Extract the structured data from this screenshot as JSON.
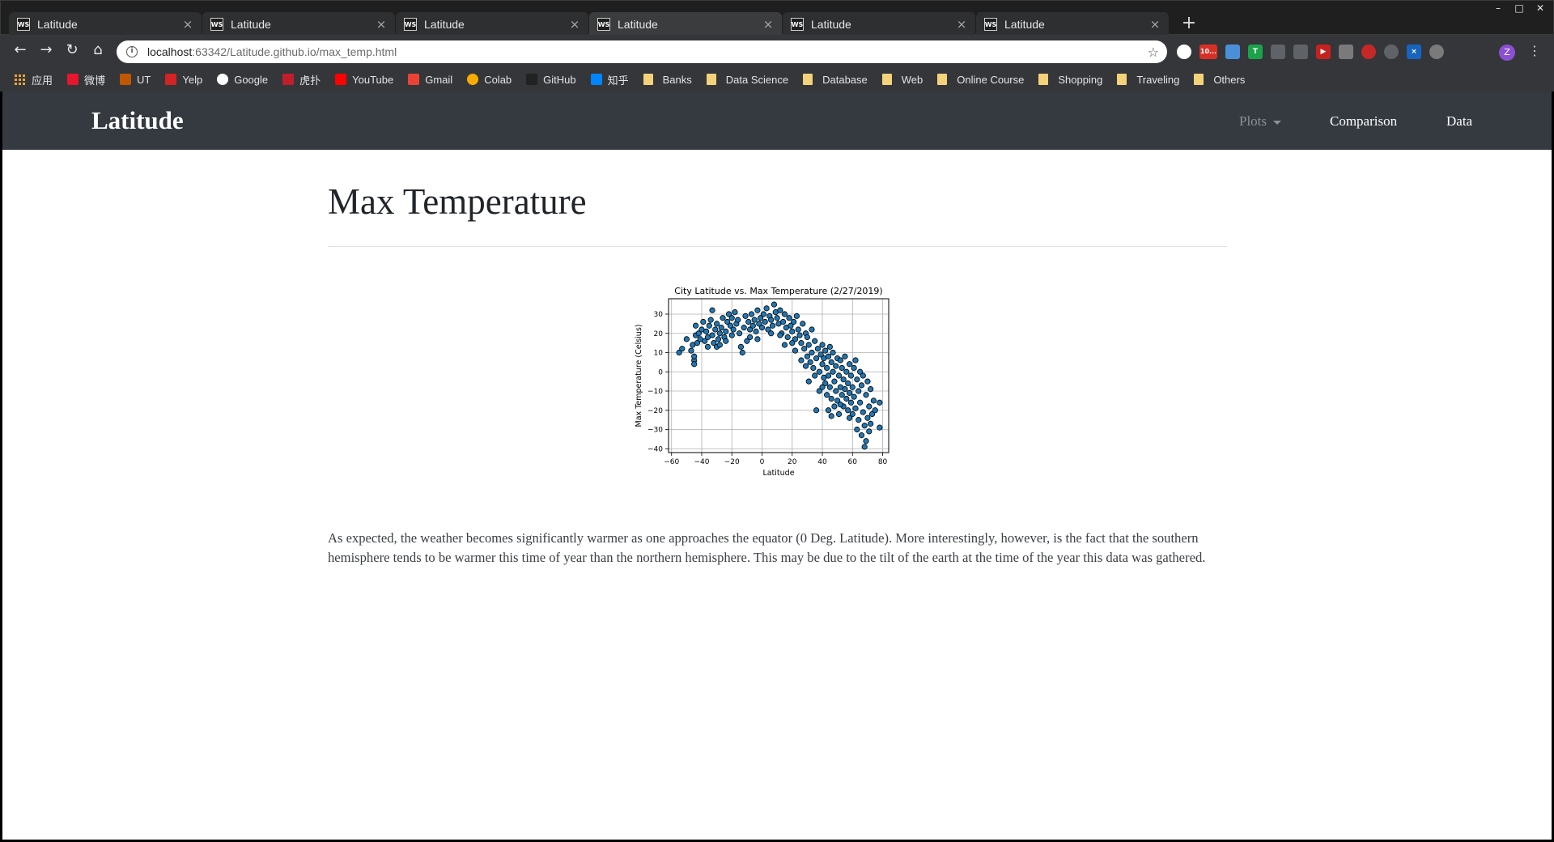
{
  "browser": {
    "tabs": [
      {
        "title": "Latitude",
        "icon": "ws-icon"
      },
      {
        "title": "Latitude",
        "icon": "ws-icon"
      },
      {
        "title": "Latitude",
        "icon": "ws-icon"
      },
      {
        "title": "Latitude",
        "icon": "ws-icon",
        "active": true
      },
      {
        "title": "Latitude",
        "icon": "ws-icon"
      },
      {
        "title": "Latitude",
        "icon": "ws-icon"
      }
    ],
    "favicon_text": "WS",
    "url_host": "localhost",
    "url_rest": ":63342/Latitude.github.io/max_temp.html",
    "profile_initial": "Z",
    "mail_badge": "10...",
    "bookmarks": [
      {
        "label": "应用",
        "icon": "apps-grid-icon"
      },
      {
        "label": "微博",
        "icon": "weibo-icon",
        "color": "#e6162d"
      },
      {
        "label": "UT",
        "icon": "ut-shield-icon",
        "color": "#bf5700"
      },
      {
        "label": "Yelp",
        "icon": "yelp-icon",
        "color": "#d32323"
      },
      {
        "label": "Google",
        "icon": "google-icon",
        "color": "#ffffff"
      },
      {
        "label": "虎扑",
        "icon": "hupu-icon",
        "color": "#c01e2f"
      },
      {
        "label": "YouTube",
        "icon": "youtube-icon",
        "color": "#ff0000"
      },
      {
        "label": "Gmail",
        "icon": "gmail-icon",
        "color": "#ea4335"
      },
      {
        "label": "Colab",
        "icon": "colab-icon",
        "color": "#f9ab00"
      },
      {
        "label": "GitHub",
        "icon": "github-icon",
        "color": "#222222"
      },
      {
        "label": "知乎",
        "icon": "zhihu-icon",
        "color": "#0084ff"
      },
      {
        "label": "Banks",
        "icon": "folder-icon"
      },
      {
        "label": "Data Science",
        "icon": "folder-icon"
      },
      {
        "label": "Database",
        "icon": "folder-icon"
      },
      {
        "label": "Web",
        "icon": "folder-icon"
      },
      {
        "label": "Online Course",
        "icon": "folder-icon"
      },
      {
        "label": "Shopping",
        "icon": "folder-icon"
      },
      {
        "label": "Traveling",
        "icon": "folder-icon"
      },
      {
        "label": "Others",
        "icon": "folder-icon"
      }
    ]
  },
  "site": {
    "brand": "Latitude",
    "nav": {
      "plots": "Plots",
      "comparison": "Comparison",
      "data": "Data"
    }
  },
  "page": {
    "title": "Max Temperature",
    "description": "As expected, the weather becomes significantly warmer as one approaches the equator (0 Deg. Latitude). More interestingly, however, is the fact that the southern hemisphere tends to be warmer this time of year than the northern hemisphere. This may be due to the tilt of the earth at the time of the year this data was gathered."
  },
  "colors": {
    "navbar": "#343a40",
    "point_fill": "#1f77b4",
    "point_edge": "#000000"
  },
  "chart_data": {
    "type": "scatter",
    "title": "City Latitude vs. Max Temperature (2/27/2019)",
    "xlabel": "Latitude",
    "ylabel": "Max Temperature (Celsius)",
    "xlim": [
      -62,
      84
    ],
    "ylim": [
      -42,
      38
    ],
    "xticks": [
      -60,
      -40,
      -20,
      0,
      20,
      40,
      60,
      80
    ],
    "yticks": [
      -40,
      -30,
      -20,
      -10,
      0,
      10,
      20,
      30
    ],
    "grid": true,
    "legend": "none",
    "points": [
      [
        -55,
        10
      ],
      [
        -53,
        12
      ],
      [
        -50,
        17
      ],
      [
        -47,
        11
      ],
      [
        -46,
        14
      ],
      [
        -45,
        6
      ],
      [
        -45,
        4
      ],
      [
        -45,
        8
      ],
      [
        -44,
        19
      ],
      [
        -44,
        24
      ],
      [
        -43,
        15
      ],
      [
        -42,
        20
      ],
      [
        -41,
        17
      ],
      [
        -40,
        22
      ],
      [
        -39,
        26
      ],
      [
        -38,
        16
      ],
      [
        -37,
        21
      ],
      [
        -36,
        18
      ],
      [
        -35,
        24
      ],
      [
        -34,
        27
      ],
      [
        -33,
        32
      ],
      [
        -33,
        19
      ],
      [
        -32,
        15
      ],
      [
        -31,
        22
      ],
      [
        -30,
        25
      ],
      [
        -30,
        13
      ],
      [
        -29,
        17
      ],
      [
        -28,
        20
      ],
      [
        -27,
        23
      ],
      [
        -26,
        28
      ],
      [
        -25,
        18
      ],
      [
        -24,
        21
      ],
      [
        -23,
        26
      ],
      [
        -22,
        30
      ],
      [
        -21,
        24
      ],
      [
        -20,
        19
      ],
      [
        -20,
        28
      ],
      [
        -19,
        22
      ],
      [
        -18,
        31
      ],
      [
        -17,
        25
      ],
      [
        -16,
        27
      ],
      [
        -15,
        20
      ],
      [
        -14,
        13
      ],
      [
        -13,
        10
      ],
      [
        -12,
        23
      ],
      [
        -11,
        29
      ],
      [
        -10,
        16
      ],
      [
        -9,
        26
      ],
      [
        -8,
        22
      ],
      [
        -7,
        30
      ],
      [
        -6,
        24
      ],
      [
        -5,
        27
      ],
      [
        -4,
        21
      ],
      [
        -3,
        32
      ],
      [
        -2,
        25
      ],
      [
        -1,
        28
      ],
      [
        0,
        23
      ],
      [
        1,
        30
      ],
      [
        2,
        26
      ],
      [
        3,
        33
      ],
      [
        4,
        22
      ],
      [
        5,
        29
      ],
      [
        6,
        27
      ],
      [
        7,
        24
      ],
      [
        8,
        35
      ],
      [
        9,
        31
      ],
      [
        10,
        28
      ],
      [
        11,
        25
      ],
      [
        12,
        32
      ],
      [
        13,
        20
      ],
      [
        14,
        26
      ],
      [
        15,
        30
      ],
      [
        16,
        23
      ],
      [
        17,
        18
      ],
      [
        18,
        28
      ],
      [
        19,
        24
      ],
      [
        20,
        21
      ],
      [
        21,
        26
      ],
      [
        22,
        17
      ],
      [
        23,
        29
      ],
      [
        24,
        22
      ],
      [
        25,
        19
      ],
      [
        26,
        15
      ],
      [
        27,
        25
      ],
      [
        28,
        12
      ],
      [
        29,
        20
      ],
      [
        30,
        8
      ],
      [
        30,
        18
      ],
      [
        31,
        14
      ],
      [
        32,
        5
      ],
      [
        33,
        22
      ],
      [
        33,
        10
      ],
      [
        34,
        2
      ],
      [
        35,
        16
      ],
      [
        36,
        7
      ],
      [
        36,
        -20
      ],
      [
        37,
        12
      ],
      [
        38,
        0
      ],
      [
        38,
        -10
      ],
      [
        39,
        9
      ],
      [
        40,
        4
      ],
      [
        40,
        14
      ],
      [
        41,
        -3
      ],
      [
        41,
        7
      ],
      [
        42,
        11
      ],
      [
        42,
        -6
      ],
      [
        43,
        2
      ],
      [
        43,
        -12
      ],
      [
        44,
        8
      ],
      [
        44,
        -2
      ],
      [
        45,
        13
      ],
      [
        45,
        -8
      ],
      [
        46,
        5
      ],
      [
        46,
        -14
      ],
      [
        47,
        0
      ],
      [
        47,
        10
      ],
      [
        48,
        -5
      ],
      [
        48,
        -18
      ],
      [
        49,
        3
      ],
      [
        49,
        -10
      ],
      [
        50,
        7
      ],
      [
        50,
        -15
      ],
      [
        51,
        -2
      ],
      [
        51,
        -22
      ],
      [
        52,
        6
      ],
      [
        52,
        -8
      ],
      [
        53,
        -12
      ],
      [
        53,
        2
      ],
      [
        54,
        -4
      ],
      [
        54,
        -18
      ],
      [
        55,
        8
      ],
      [
        55,
        -9
      ],
      [
        56,
        -14
      ],
      [
        56,
        0
      ],
      [
        57,
        -6
      ],
      [
        57,
        -20
      ],
      [
        58,
        4
      ],
      [
        58,
        -11
      ],
      [
        59,
        -16
      ],
      [
        59,
        -2
      ],
      [
        60,
        -8
      ],
      [
        60,
        -22
      ],
      [
        61,
        2
      ],
      [
        61,
        -13
      ],
      [
        62,
        6
      ],
      [
        62,
        -19
      ],
      [
        63,
        -4
      ],
      [
        63,
        -30
      ],
      [
        64,
        -10
      ],
      [
        64,
        -25
      ],
      [
        65,
        0
      ],
      [
        65,
        -16
      ],
      [
        66,
        -7
      ],
      [
        66,
        -33
      ],
      [
        67,
        -21
      ],
      [
        67,
        -2
      ],
      [
        68,
        -39
      ],
      [
        68,
        -28
      ],
      [
        69,
        -12
      ],
      [
        69,
        -36
      ],
      [
        70,
        -24
      ],
      [
        70,
        -5
      ],
      [
        71,
        -31
      ],
      [
        71,
        -18
      ],
      [
        72,
        -27
      ],
      [
        72,
        -9
      ],
      [
        73,
        -22
      ],
      [
        74,
        -15
      ],
      [
        75,
        -20
      ],
      [
        78,
        -16
      ],
      [
        78,
        -29
      ],
      [
        -8,
        18
      ],
      [
        -3,
        17
      ],
      [
        12,
        19
      ],
      [
        20,
        15
      ],
      [
        26,
        6
      ],
      [
        31,
        -5
      ],
      [
        29,
        3
      ],
      [
        35,
        -2
      ],
      [
        44,
        -20
      ],
      [
        -36,
        13
      ],
      [
        -28,
        14
      ],
      [
        -24,
        16
      ],
      [
        6,
        20
      ],
      [
        15,
        14
      ],
      [
        22,
        11
      ],
      [
        40,
        -8
      ],
      [
        46,
        -23
      ],
      [
        52,
        -17
      ],
      [
        58,
        -24
      ]
    ]
  }
}
